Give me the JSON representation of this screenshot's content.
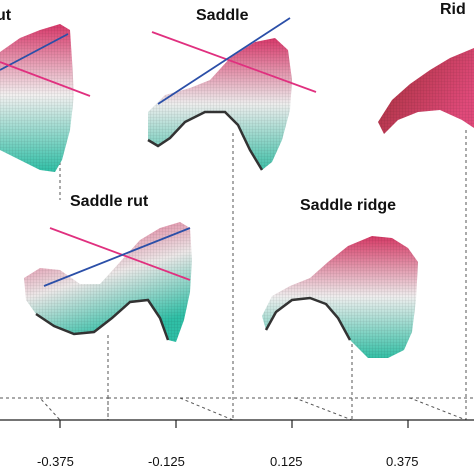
{
  "labels": {
    "rut": "ut",
    "saddle": "Saddle",
    "ridge": "Rid",
    "saddle_rut": "Saddle rut",
    "saddle_ridge": "Saddle ridge"
  },
  "axis": {
    "ticks": [
      "-0.375",
      "-0.125",
      "0.125",
      "0.375"
    ]
  },
  "colors": {
    "top": "#d8386a",
    "mid": "#f2f2f2",
    "bottom": "#2fbfa6",
    "principal_line_1": "#e0307f",
    "principal_line_2": "#2b4fa8"
  }
}
